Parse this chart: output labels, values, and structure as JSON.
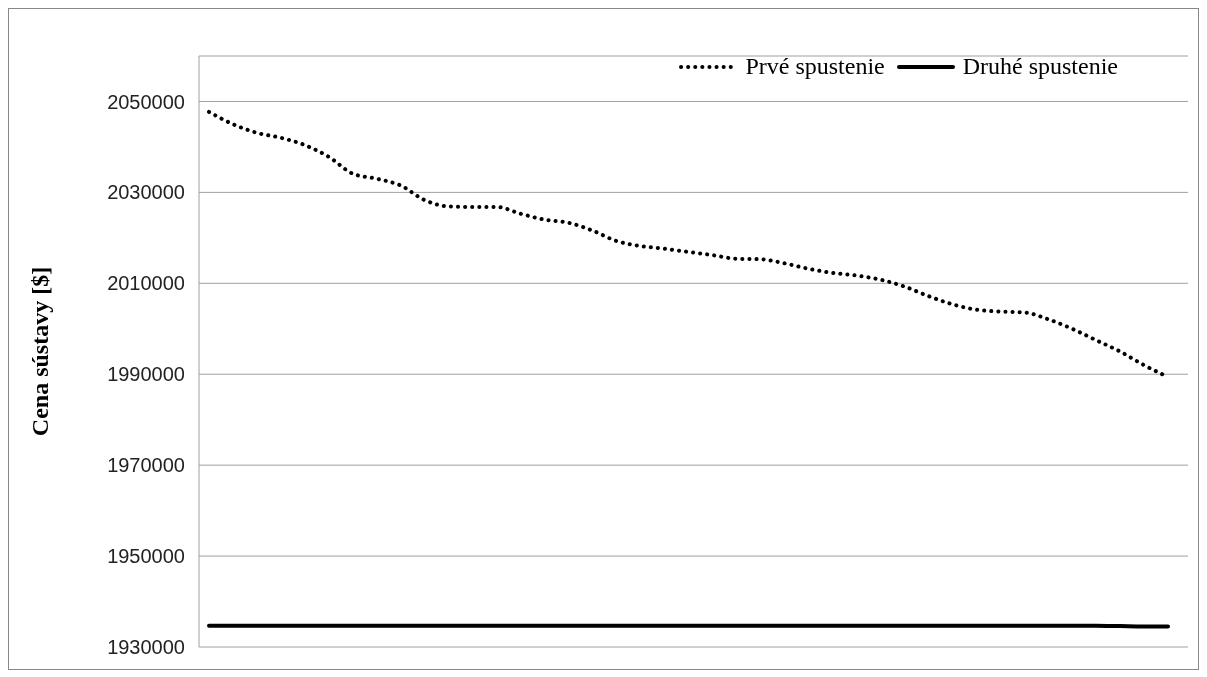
{
  "chart_data": {
    "type": "line",
    "ylabel": "Cena sústavy [$]",
    "categories": [
      null,
      null,
      null,
      null,
      null,
      null,
      null,
      null,
      null,
      null,
      null,
      null,
      null,
      null,
      null,
      null,
      null,
      null,
      null,
      null,
      null,
      null,
      null,
      null,
      null,
      null,
      null,
      null,
      null,
      null,
      null,
      null,
      null,
      null,
      null,
      null,
      null,
      null,
      null,
      null,
      null
    ],
    "series": [
      {
        "name": "Prvé spustenie",
        "color": "#000000",
        "line_style": "dotted",
        "values": [
          2047700,
          2045000,
          2043100,
          2042000,
          2040400,
          2037800,
          2034100,
          2033000,
          2031500,
          2028300,
          2026900,
          2026800,
          2026800,
          2025300,
          2024000,
          2023300,
          2021600,
          2019300,
          2018200,
          2017600,
          2016900,
          2016200,
          2015400,
          2015300,
          2014400,
          2013200,
          2012300,
          2011700,
          2010800,
          2009300,
          2007200,
          2005400,
          2004200,
          2003800,
          2003600,
          2002100,
          2000000,
          1997500,
          1995000,
          1992000,
          1989400
        ]
      },
      {
        "name": "Druhé spustenie",
        "color": "#000000",
        "line_style": "solid",
        "values": [
          1934700,
          1934700,
          1934700,
          1934700,
          1934700,
          1934700,
          1934700,
          1934700,
          1934700,
          1934700,
          1934700,
          1934700,
          1934700,
          1934700,
          1934700,
          1934700,
          1934700,
          1934700,
          1934700,
          1934700,
          1934700,
          1934700,
          1934700,
          1934700,
          1934700,
          1934700,
          1934700,
          1934700,
          1934700,
          1934700,
          1934700,
          1934700,
          1934700,
          1934700,
          1934700,
          1934700,
          1934700,
          1934700,
          1934600,
          1934500,
          1934500
        ]
      }
    ],
    "ylim": [
      1930000,
      2060000
    ],
    "yticks": [
      1930000,
      1950000,
      1970000,
      1990000,
      2010000,
      2030000,
      2050000
    ],
    "grid": "y",
    "legend": "top right",
    "tick_labels": "y"
  }
}
